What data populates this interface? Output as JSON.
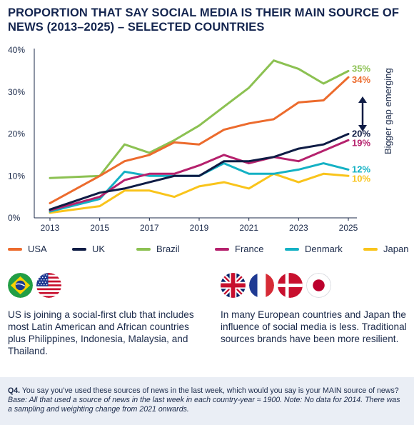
{
  "title": "PROPORTION THAT SAY SOCIAL MEDIA IS THEIR MAIN SOURCE OF NEWS (2013–2025) – SELECTED COUNTRIES",
  "chart_data": {
    "type": "line",
    "x": [
      2013,
      2014,
      2015,
      2016,
      2017,
      2018,
      2019,
      2020,
      2021,
      2022,
      2023,
      2024,
      2025
    ],
    "ylim": [
      0,
      40
    ],
    "y_ticks": [
      "0%",
      "10%",
      "20%",
      "30%",
      "40%"
    ],
    "x_ticks": [
      "2013",
      "2015",
      "2017",
      "2019",
      "2021",
      "2023",
      "2025"
    ],
    "grid": false,
    "legend_position": "bottom",
    "series": [
      {
        "name": "USA",
        "color": "#ec6b2d",
        "end_label": "34%",
        "values": [
          3.5,
          null,
          10,
          13.5,
          15,
          18,
          17.5,
          21,
          22.5,
          23.5,
          27.5,
          28,
          33.5
        ]
      },
      {
        "name": "UK",
        "color": "#0f1c45",
        "end_label": "20%",
        "values": [
          2,
          null,
          6,
          7,
          8.5,
          10,
          10,
          13.5,
          13.5,
          14.5,
          16.5,
          17.5,
          20
        ]
      },
      {
        "name": "Brazil",
        "color": "#8cc152",
        "end_label": "35%",
        "values": [
          9.5,
          null,
          10,
          17.5,
          15.5,
          18.5,
          22,
          26.5,
          31,
          37.5,
          35.5,
          32,
          35
        ]
      },
      {
        "name": "France",
        "color": "#b5216d",
        "end_label": "19%",
        "values": [
          1.8,
          null,
          5,
          9,
          10.5,
          10.5,
          12.5,
          15,
          13,
          14.5,
          13.5,
          16,
          18.5
        ]
      },
      {
        "name": "Denmark",
        "color": "#14b1c4",
        "end_label": "12%",
        "values": [
          1.5,
          null,
          4.5,
          11,
          10,
          10,
          10,
          13,
          10.5,
          10.5,
          11.5,
          13,
          11.5
        ]
      },
      {
        "name": "Japan",
        "color": "#f9c41b",
        "end_label": "10%",
        "values": [
          1.2,
          null,
          2.8,
          6.5,
          6.5,
          5,
          7.5,
          8.5,
          7,
          10.5,
          8.5,
          10.5,
          10
        ]
      }
    ],
    "annotation": "Bigger gap emerging"
  },
  "flags_left": [
    "brazil-flag-icon",
    "usa-flag-icon"
  ],
  "flags_right": [
    "uk-flag-icon",
    "france-flag-icon",
    "denmark-flag-icon",
    "japan-flag-icon"
  ],
  "note_left": "US is joining a social-first club that includes most Latin American and African countries plus Philippines, Indonesia, Malaysia, and Thailand.",
  "note_right": "In many European countries and Japan the influence of social media is less. Traditional sources brands have been more resilient.",
  "footer": {
    "q_label": "Q4.",
    "question": " You say you’ve used these sources of news in the last week, which would you say is your MAIN source of news? ",
    "base": "Base: All that used a source of news in the last week in each country-year ≈ 1900. Note: No data for 2014. There was a sampling and weighting change from 2021 onwards."
  }
}
